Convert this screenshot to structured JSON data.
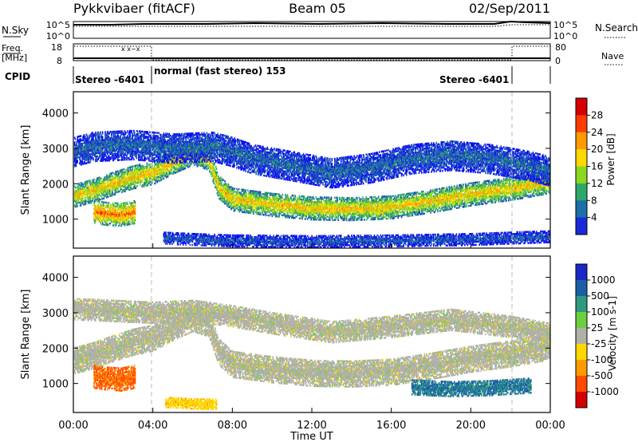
{
  "header": {
    "station": "Pykkvibaer (fitACF)",
    "beam": "Beam 05",
    "date": "02/Sep/2011"
  },
  "summary_panels": {
    "nsky": {
      "label": "N.Sky",
      "top_tick": "10^5",
      "bottom_tick": "10^0"
    },
    "nsearch": {
      "label": "N.Search",
      "top_tick": "10^5",
      "bottom_tick": "10^0"
    },
    "freq": {
      "label_line1": "Freq.",
      "label_line2": "[MHz]",
      "top_tick": "18",
      "bottom_tick": "8"
    },
    "nave": {
      "label": "Nave",
      "top_tick": "80",
      "bottom_tick": "0"
    },
    "cpid": {
      "label": "CPID",
      "segments": [
        {
          "label": "Stereo -6401",
          "start": 0,
          "end": 4
        },
        {
          "label": "normal (fast stereo) 153",
          "start": 4,
          "end": 22
        },
        {
          "label": "Stereo -6401",
          "start": 22,
          "end": 24
        }
      ]
    }
  },
  "chart_data": [
    {
      "type": "heatmap",
      "panel": "power",
      "ylabel": "Slant Range [km]",
      "xlabel": "",
      "xlim": [
        0,
        24
      ],
      "ylim": [
        180,
        4600
      ],
      "yticks": [
        1000,
        2000,
        3000,
        4000
      ],
      "colorbar": {
        "label": "Power [dB]",
        "ticks": [
          "28",
          "24",
          "20",
          "16",
          "12",
          "8",
          "4"
        ],
        "colors": [
          "#d40000",
          "#ff3c00",
          "#ff9a00",
          "#ffd800",
          "#8cd820",
          "#2ea86a",
          "#1e6ea8",
          "#1a2ad8",
          "#0000ff"
        ]
      },
      "bands": [
        {
          "name": "main",
          "points": [
            [
              0,
              1650
            ],
            [
              1,
              1800
            ],
            [
              2,
              2000
            ],
            [
              3,
              2180
            ],
            [
              4,
              2300
            ],
            [
              5,
              2600
            ],
            [
              6,
              2850
            ],
            [
              6.8,
              2700
            ],
            [
              7.3,
              1900
            ],
            [
              8,
              1550
            ],
            [
              10,
              1400
            ],
            [
              12,
              1300
            ],
            [
              14,
              1280
            ],
            [
              16,
              1330
            ],
            [
              18,
              1500
            ],
            [
              20,
              1700
            ],
            [
              22,
              1850
            ],
            [
              24,
              2050
            ]
          ],
          "width": 320,
          "power": 21
        },
        {
          "name": "upper",
          "points": [
            [
              0,
              2900
            ],
            [
              1,
              3050
            ],
            [
              3,
              3100
            ],
            [
              5,
              3000
            ],
            [
              7,
              3050
            ],
            [
              8,
              2900
            ],
            [
              9,
              2700
            ],
            [
              11,
              2500
            ],
            [
              13,
              2300
            ],
            [
              15,
              2450
            ],
            [
              17,
              2700
            ],
            [
              19,
              2800
            ],
            [
              21,
              2700
            ],
            [
              23,
              2500
            ],
            [
              24,
              2350
            ]
          ],
          "width": 420,
          "power": 9
        },
        {
          "name": "near",
          "points": [
            [
              1,
              1200
            ],
            [
              1.6,
              1150
            ],
            [
              2.4,
              1120
            ],
            [
              3.1,
              1200
            ]
          ],
          "width": 320,
          "power": 25
        },
        {
          "name": "low",
          "points": [
            [
              4.5,
              460
            ],
            [
              6,
              420
            ],
            [
              8,
              380
            ],
            [
              12,
              360
            ],
            [
              16,
              380
            ],
            [
              20,
              420
            ],
            [
              24,
              500
            ]
          ],
          "width": 160,
          "power": 8
        }
      ]
    },
    {
      "type": "heatmap",
      "panel": "velocity",
      "ylabel": "Slant Range [km]",
      "xlabel": "Time UT",
      "xlim": [
        0,
        24
      ],
      "ylim": [
        180,
        4600
      ],
      "yticks": [
        1000,
        2000,
        3000,
        4000
      ],
      "xticks": [
        "00:00",
        "04:00",
        "08:00",
        "12:00",
        "16:00",
        "20:00",
        "00:00"
      ],
      "colorbar": {
        "label": "Velocity [m s-1]",
        "ticks": [
          "1000",
          "500",
          "100",
          "25",
          "-25",
          "-100",
          "-500",
          "-1000"
        ],
        "colors": [
          "#1a28c8",
          "#1a5fa8",
          "#2e9a80",
          "#6ccf40",
          "#b0b0a8",
          "#ffd800",
          "#ff9a00",
          "#ff4a00",
          "#d40000"
        ]
      },
      "bands": [
        {
          "name": "main",
          "points": [
            [
              0,
              1650
            ],
            [
              1,
              1800
            ],
            [
              2,
              2000
            ],
            [
              3,
              2180
            ],
            [
              4,
              2300
            ],
            [
              5,
              2600
            ],
            [
              6,
              2850
            ],
            [
              6.8,
              2700
            ],
            [
              7.3,
              1900
            ],
            [
              8,
              1550
            ],
            [
              10,
              1400
            ],
            [
              12,
              1300
            ],
            [
              14,
              1280
            ],
            [
              16,
              1330
            ],
            [
              18,
              1500
            ],
            [
              20,
              1700
            ],
            [
              22,
              1850
            ],
            [
              24,
              2050
            ]
          ],
          "width": 380,
          "velocity": 0
        },
        {
          "name": "upper",
          "points": [
            [
              0,
              3100
            ],
            [
              2,
              3050
            ],
            [
              4,
              3000
            ],
            [
              6,
              3050
            ],
            [
              8,
              2900
            ],
            [
              10,
              2700
            ],
            [
              13,
              2450
            ],
            [
              16,
              2600
            ],
            [
              19,
              2800
            ],
            [
              22,
              2600
            ],
            [
              24,
              2400
            ]
          ],
          "width": 300,
          "velocity": 0
        },
        {
          "name": "near",
          "points": [
            [
              1,
              1200
            ],
            [
              1.6,
              1150
            ],
            [
              2.4,
              1120
            ],
            [
              3.1,
              1200
            ]
          ],
          "width": 330,
          "velocity": -450
        },
        {
          "name": "low",
          "points": [
            [
              4.6,
              470
            ],
            [
              6,
              430
            ],
            [
              7.2,
              420
            ]
          ],
          "width": 150,
          "velocity": -80
        },
        {
          "name": "late",
          "points": [
            [
              17,
              900
            ],
            [
              19,
              850
            ],
            [
              21,
              880
            ],
            [
              23,
              950
            ]
          ],
          "width": 220,
          "velocity": 300
        }
      ]
    }
  ]
}
